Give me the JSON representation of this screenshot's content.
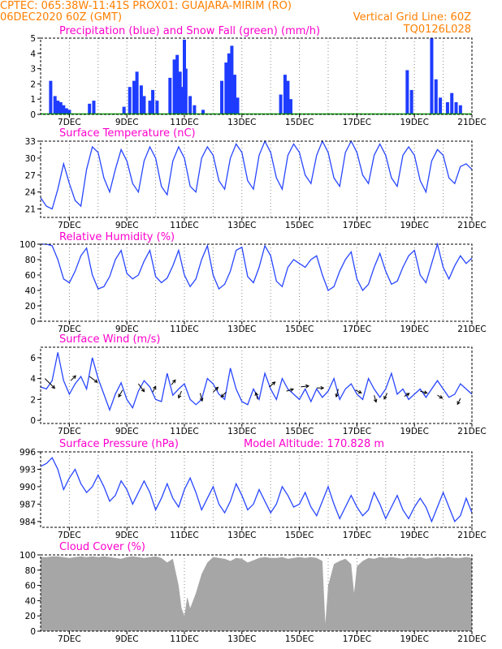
{
  "header": {
    "line1_left": "CPTEC:   065:38W-11:41S   PROX01: GUAJARA-MIRIM (RO)",
    "line2_left": "06DEC2020 60Z (GMT)",
    "line2_right": "Vertical Grid Line: 60Z",
    "line3_right": "TQ0126L028"
  },
  "colors": {
    "header": "#ff7f00",
    "title": "#ff00cc",
    "line": "#2846ff",
    "bar": "#1e3cff",
    "snow": "#00aa00",
    "cloud": "#a6a6a6"
  },
  "x_axis": {
    "labels": [
      "7DEC",
      "9DEC",
      "11DEC",
      "13DEC",
      "15DEC",
      "17DEC",
      "19DEC",
      "21DEC"
    ]
  },
  "chart_data": [
    {
      "type": "bar",
      "title": "Precipitation (blue) and Snow Fall (green) (mm/h)",
      "ylim": [
        0,
        5
      ],
      "yticks": [
        "0",
        "1",
        "2",
        "3",
        "4",
        "5"
      ],
      "x_days": [
        6.35,
        6.5,
        6.6,
        6.7,
        6.8,
        6.9,
        7.0,
        7.7,
        7.85,
        8.9,
        9.1,
        9.25,
        9.35,
        9.5,
        9.6,
        9.8,
        9.9,
        10.05,
        10.5,
        10.65,
        10.75,
        10.85,
        10.95,
        11.0,
        11.05,
        11.2,
        11.35,
        11.65,
        12.3,
        12.45,
        12.55,
        12.65,
        12.75,
        12.85,
        14.35,
        14.5,
        14.6,
        14.7,
        18.75,
        18.9,
        19.6,
        19.75,
        19.9,
        20.15,
        20.3,
        20.45,
        20.6
      ],
      "values": [
        2.2,
        1.2,
        0.9,
        0.8,
        0.6,
        0.4,
        0.3,
        0.7,
        0.9,
        0.5,
        1.8,
        2.2,
        2.8,
        1.9,
        1.2,
        0.9,
        1.6,
        0.9,
        2.4,
        3.6,
        3.9,
        2.8,
        1.8,
        4.9,
        3.0,
        1.2,
        0.6,
        0.3,
        2.2,
        3.4,
        4.0,
        4.5,
        2.6,
        1.1,
        1.3,
        2.6,
        2.2,
        1.0,
        2.9,
        1.6,
        5.0,
        2.3,
        1.1,
        0.8,
        1.4,
        0.8,
        0.6
      ],
      "snow_values": [
        0
      ]
    },
    {
      "type": "line",
      "title": "Surface Temperature (nC)",
      "ylim": [
        19.5,
        33
      ],
      "yticks": [
        "21",
        "24",
        "27",
        "30",
        "33"
      ],
      "x": [
        6.0,
        6.2,
        6.4,
        6.6,
        6.8,
        7.0,
        7.2,
        7.4,
        7.6,
        7.8,
        8.0,
        8.2,
        8.4,
        8.6,
        8.8,
        9.0,
        9.2,
        9.4,
        9.6,
        9.8,
        10.0,
        10.2,
        10.4,
        10.6,
        10.8,
        11.0,
        11.2,
        11.4,
        11.6,
        11.8,
        12.0,
        12.2,
        12.4,
        12.6,
        12.8,
        13.0,
        13.2,
        13.4,
        13.6,
        13.8,
        14.0,
        14.2,
        14.4,
        14.6,
        14.8,
        15.0,
        15.2,
        15.4,
        15.6,
        15.8,
        16.0,
        16.2,
        16.4,
        16.6,
        16.8,
        17.0,
        17.2,
        17.4,
        17.6,
        17.8,
        18.0,
        18.2,
        18.4,
        18.6,
        18.8,
        19.0,
        19.2,
        19.4,
        19.6,
        19.8,
        20.0,
        20.2,
        20.4,
        20.6,
        20.8,
        21.0
      ],
      "y": [
        23.0,
        21.5,
        21.0,
        24.5,
        29.0,
        25.5,
        22.5,
        21.5,
        28.0,
        32.0,
        31.0,
        26.5,
        24.0,
        28.0,
        31.5,
        29.5,
        25.5,
        24.0,
        29.5,
        32.0,
        30.0,
        25.0,
        23.5,
        29.5,
        32.0,
        30.0,
        25.0,
        24.0,
        30.0,
        32.0,
        30.5,
        26.0,
        24.5,
        30.0,
        32.5,
        31.0,
        26.0,
        24.5,
        30.5,
        33.0,
        31.0,
        26.5,
        24.5,
        30.5,
        32.5,
        31.0,
        27.0,
        25.5,
        30.5,
        33.0,
        31.0,
        26.5,
        25.0,
        31.0,
        33.0,
        31.0,
        27.0,
        25.5,
        30.5,
        32.5,
        30.5,
        26.5,
        25.0,
        30.5,
        32.0,
        30.5,
        26.0,
        24.0,
        29.5,
        31.5,
        30.5,
        26.5,
        25.5,
        28.5,
        29.0,
        28.0
      ]
    },
    {
      "type": "line",
      "title": "Relative Humidity (%)",
      "ylim": [
        0,
        100
      ],
      "yticks": [
        "0",
        "20",
        "40",
        "60",
        "80",
        "100"
      ],
      "x": [
        6.0,
        6.2,
        6.4,
        6.6,
        6.8,
        7.0,
        7.2,
        7.4,
        7.6,
        7.8,
        8.0,
        8.2,
        8.4,
        8.6,
        8.8,
        9.0,
        9.2,
        9.4,
        9.6,
        9.8,
        10.0,
        10.2,
        10.4,
        10.6,
        10.8,
        11.0,
        11.2,
        11.4,
        11.6,
        11.8,
        12.0,
        12.2,
        12.4,
        12.6,
        12.8,
        13.0,
        13.2,
        13.4,
        13.6,
        13.8,
        14.0,
        14.2,
        14.4,
        14.6,
        14.8,
        15.0,
        15.2,
        15.4,
        15.6,
        15.8,
        16.0,
        16.2,
        16.4,
        16.6,
        16.8,
        17.0,
        17.2,
        17.4,
        17.6,
        17.8,
        18.0,
        18.2,
        18.4,
        18.6,
        18.8,
        19.0,
        19.2,
        19.4,
        19.6,
        19.8,
        20.0,
        20.2,
        20.4,
        20.6,
        20.8,
        21.0
      ],
      "y": [
        100,
        100,
        98,
        80,
        55,
        50,
        65,
        85,
        95,
        60,
        42,
        45,
        58,
        80,
        92,
        62,
        55,
        60,
        78,
        92,
        58,
        50,
        56,
        72,
        92,
        60,
        45,
        55,
        80,
        98,
        60,
        42,
        48,
        65,
        92,
        96,
        58,
        50,
        70,
        98,
        85,
        52,
        45,
        70,
        80,
        75,
        70,
        80,
        85,
        60,
        40,
        45,
        65,
        80,
        90,
        55,
        40,
        48,
        70,
        88,
        65,
        48,
        52,
        70,
        85,
        92,
        60,
        50,
        75,
        100,
        70,
        55,
        72,
        85,
        75,
        82
      ]
    },
    {
      "type": "line",
      "title": "Surface Wind (m/s)",
      "ylim": [
        -0.3,
        7
      ],
      "yticks": [
        "0",
        "2",
        "4",
        "6"
      ],
      "x": [
        6.0,
        6.2,
        6.4,
        6.6,
        6.8,
        7.0,
        7.2,
        7.4,
        7.6,
        7.8,
        8.0,
        8.2,
        8.4,
        8.6,
        8.8,
        9.0,
        9.2,
        9.4,
        9.6,
        9.8,
        10.0,
        10.2,
        10.4,
        10.6,
        10.8,
        11.0,
        11.2,
        11.4,
        11.6,
        11.8,
        12.0,
        12.2,
        12.4,
        12.6,
        12.8,
        13.0,
        13.2,
        13.4,
        13.6,
        13.8,
        14.0,
        14.2,
        14.4,
        14.6,
        14.8,
        15.0,
        15.2,
        15.4,
        15.6,
        15.8,
        16.0,
        16.2,
        16.4,
        16.6,
        16.8,
        17.0,
        17.2,
        17.4,
        17.6,
        17.8,
        18.0,
        18.2,
        18.4,
        18.6,
        18.8,
        19.0,
        19.2,
        19.4,
        19.6,
        19.8,
        20.0,
        20.2,
        20.4,
        20.6,
        20.8,
        21.0
      ],
      "y": [
        3.2,
        3.0,
        3.8,
        6.5,
        3.8,
        2.5,
        3.5,
        4.2,
        3.0,
        6.0,
        4.0,
        2.5,
        1.0,
        2.5,
        3.6,
        2.0,
        1.2,
        2.8,
        3.8,
        3.2,
        2.0,
        1.8,
        4.5,
        2.4,
        3.0,
        3.5,
        2.0,
        1.5,
        2.0,
        4.0,
        3.5,
        2.5,
        2.0,
        5.0,
        3.0,
        1.8,
        1.5,
        3.0,
        2.0,
        4.5,
        3.0,
        2.0,
        4.0,
        3.0,
        2.5,
        2.0,
        3.0,
        1.8,
        3.0,
        2.2,
        2.8,
        4.0,
        2.0,
        3.0,
        3.5,
        2.5,
        2.0,
        4.0,
        3.0,
        2.2,
        3.0,
        4.5,
        2.5,
        3.0,
        2.0,
        2.5,
        3.0,
        2.2,
        3.0,
        3.8,
        3.0,
        2.2,
        2.5,
        3.5,
        3.0,
        2.5
      ],
      "vectors": [
        {
          "x": 6.15,
          "y": 4.0,
          "u": 1.0,
          "v": -1.0
        },
        {
          "x": 7.05,
          "y": 3.8,
          "u": 0.5,
          "v": 0.5
        },
        {
          "x": 7.7,
          "y": 4.2,
          "u": 0.8,
          "v": -0.6
        },
        {
          "x": 8.85,
          "y": 2.9,
          "u": -0.4,
          "v": -0.7
        },
        {
          "x": 9.4,
          "y": 3.5,
          "u": 0.6,
          "v": -0.8
        },
        {
          "x": 9.9,
          "y": 2.7,
          "u": 0.3,
          "v": 0.6
        },
        {
          "x": 10.55,
          "y": 3.4,
          "u": 0.4,
          "v": 0.5
        },
        {
          "x": 10.9,
          "y": 2.8,
          "u": -0.3,
          "v": -0.7
        },
        {
          "x": 11.55,
          "y": 2.6,
          "u": 0.2,
          "v": -0.8
        },
        {
          "x": 12.0,
          "y": 2.7,
          "u": 0.5,
          "v": 0.5
        },
        {
          "x": 12.45,
          "y": 2.7,
          "u": -0.5,
          "v": -0.5
        },
        {
          "x": 13.55,
          "y": 2.0,
          "u": -0.2,
          "v": 0.7
        },
        {
          "x": 13.95,
          "y": 3.2,
          "u": 0.6,
          "v": 0.5
        },
        {
          "x": 14.55,
          "y": 2.8,
          "u": 0.7,
          "v": 0.2
        },
        {
          "x": 15.05,
          "y": 3.2,
          "u": 0.8,
          "v": 0.1
        },
        {
          "x": 15.6,
          "y": 3.1,
          "u": 0.7,
          "v": 0.0
        },
        {
          "x": 16.35,
          "y": 3.0,
          "u": -0.2,
          "v": -0.8
        },
        {
          "x": 16.95,
          "y": 2.9,
          "u": 0.6,
          "v": -0.3
        },
        {
          "x": 17.6,
          "y": 2.4,
          "u": 0.2,
          "v": -0.7
        },
        {
          "x": 18.05,
          "y": 2.6,
          "u": -0.3,
          "v": -0.6
        },
        {
          "x": 18.65,
          "y": 2.3,
          "u": 0.5,
          "v": 0.3
        },
        {
          "x": 19.2,
          "y": 2.8,
          "u": 0.7,
          "v": -0.2
        },
        {
          "x": 19.8,
          "y": 2.4,
          "u": 0.5,
          "v": -0.3
        },
        {
          "x": 20.6,
          "y": 2.1,
          "u": -0.3,
          "v": -0.6
        }
      ]
    },
    {
      "type": "line",
      "title": "Surface Pressure (hPa)",
      "annotation": "Model Altitude: 170.828  m",
      "ylim": [
        983,
        996
      ],
      "yticks": [
        "984",
        "987",
        "990",
        "993",
        "996"
      ],
      "x": [
        6.0,
        6.2,
        6.4,
        6.6,
        6.8,
        7.0,
        7.2,
        7.4,
        7.6,
        7.8,
        8.0,
        8.2,
        8.4,
        8.6,
        8.8,
        9.0,
        9.2,
        9.4,
        9.6,
        9.8,
        10.0,
        10.2,
        10.4,
        10.6,
        10.8,
        11.0,
        11.2,
        11.4,
        11.6,
        11.8,
        12.0,
        12.2,
        12.4,
        12.6,
        12.8,
        13.0,
        13.2,
        13.4,
        13.6,
        13.8,
        14.0,
        14.2,
        14.4,
        14.6,
        14.8,
        15.0,
        15.2,
        15.4,
        15.6,
        15.8,
        16.0,
        16.2,
        16.4,
        16.6,
        16.8,
        17.0,
        17.2,
        17.4,
        17.6,
        17.8,
        18.0,
        18.2,
        18.4,
        18.6,
        18.8,
        19.0,
        19.2,
        19.4,
        19.6,
        19.8,
        20.0,
        20.2,
        20.4,
        20.6,
        20.8,
        21.0
      ],
      "y": [
        993.5,
        994.0,
        995.0,
        993.0,
        989.5,
        991.5,
        993.0,
        990.5,
        989.0,
        990.0,
        992.0,
        990.0,
        987.5,
        988.5,
        991.0,
        989.5,
        987.0,
        989.0,
        991.0,
        989.0,
        986.0,
        988.0,
        990.5,
        988.0,
        986.5,
        989.5,
        991.5,
        989.0,
        986.0,
        988.0,
        990.0,
        987.0,
        985.5,
        987.5,
        990.5,
        988.5,
        986.0,
        987.0,
        989.5,
        987.5,
        985.5,
        987.0,
        990.0,
        988.5,
        986.5,
        987.0,
        989.0,
        986.5,
        985.0,
        987.5,
        990.0,
        987.0,
        984.5,
        986.5,
        988.5,
        986.5,
        985.0,
        986.0,
        989.0,
        987.0,
        984.5,
        986.5,
        988.5,
        986.0,
        984.5,
        986.5,
        988.0,
        986.5,
        984.0,
        986.5,
        989.0,
        986.5,
        984.0,
        985.0,
        988.0,
        985.5
      ]
    },
    {
      "type": "area",
      "title": "Cloud Cover (%)",
      "ylim": [
        0,
        100
      ],
      "yticks": [
        "0",
        "20",
        "40",
        "60",
        "80",
        "100"
      ],
      "x": [
        6.0,
        6.2,
        6.4,
        6.6,
        6.8,
        7.0,
        7.2,
        7.4,
        7.6,
        7.8,
        8.0,
        8.2,
        8.4,
        8.6,
        8.8,
        9.0,
        9.2,
        9.4,
        9.6,
        9.8,
        10.0,
        10.2,
        10.4,
        10.6,
        10.8,
        10.9,
        11.0,
        11.1,
        11.2,
        11.4,
        11.6,
        11.8,
        12.0,
        12.2,
        12.4,
        12.6,
        12.8,
        13.0,
        13.2,
        13.4,
        13.6,
        13.8,
        14.0,
        14.2,
        14.4,
        14.6,
        14.8,
        15.0,
        15.2,
        15.4,
        15.6,
        15.8,
        15.9,
        16.0,
        16.2,
        16.4,
        16.6,
        16.8,
        16.9,
        17.0,
        17.2,
        17.4,
        17.6,
        17.8,
        18.0,
        18.2,
        18.4,
        18.6,
        18.8,
        19.0,
        19.2,
        19.4,
        19.6,
        19.8,
        20.0,
        20.2,
        20.4,
        20.6,
        20.8,
        21.0
      ],
      "y": [
        97,
        97,
        98,
        98,
        97,
        96,
        97,
        98,
        97,
        98,
        97,
        98,
        97,
        96,
        95,
        97,
        98,
        97,
        96,
        97,
        98,
        96,
        90,
        95,
        60,
        30,
        20,
        45,
        30,
        50,
        75,
        90,
        97,
        96,
        95,
        92,
        96,
        95,
        90,
        93,
        96,
        97,
        96,
        96,
        97,
        95,
        96,
        97,
        96,
        97,
        96,
        92,
        10,
        60,
        88,
        92,
        95,
        88,
        50,
        85,
        92,
        96,
        95,
        97,
        96,
        97,
        96,
        95,
        97,
        96,
        97,
        95,
        96,
        97,
        96,
        97,
        96,
        96,
        97,
        96
      ]
    }
  ]
}
